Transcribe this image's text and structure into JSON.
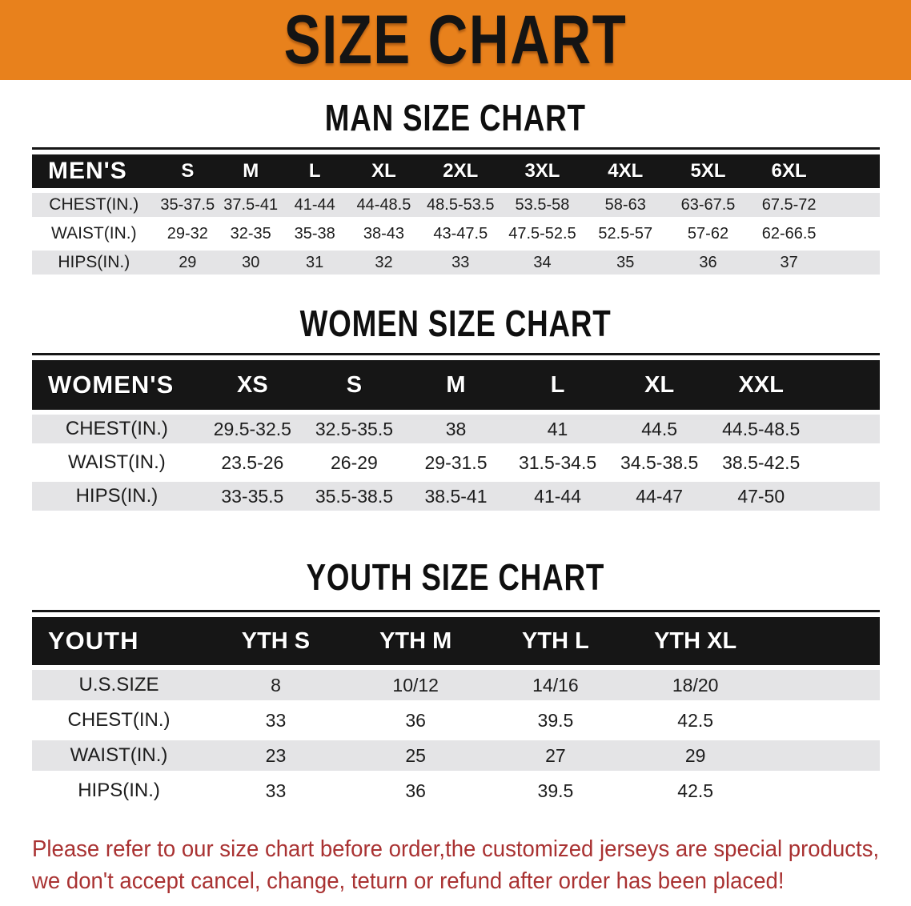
{
  "banner": {
    "title": "SIZE CHART"
  },
  "sections": [
    {
      "id": "men",
      "title": "MAN SIZE CHART",
      "group_label": "MEN'S",
      "columns": [
        "S",
        "M",
        "L",
        "XL",
        "2XL",
        "3XL",
        "4XL",
        "5XL",
        "6XL"
      ],
      "rows": [
        {
          "label": "CHEST(IN.)",
          "values": [
            "35-37.5",
            "37.5-41",
            "41-44",
            "44-48.5",
            "48.5-53.5",
            "53.5-58",
            "58-63",
            "63-67.5",
            "67.5-72"
          ]
        },
        {
          "label": "WAIST(IN.)",
          "values": [
            "29-32",
            "32-35",
            "35-38",
            "38-43",
            "43-47.5",
            "47.5-52.5",
            "52.5-57",
            "57-62",
            "62-66.5"
          ]
        },
        {
          "label": "HIPS(IN.)",
          "values": [
            "29",
            "30",
            "31",
            "32",
            "33",
            "34",
            "35",
            "36",
            "37"
          ]
        }
      ]
    },
    {
      "id": "women",
      "title": "WOMEN SIZE CHART",
      "group_label": "WOMEN'S",
      "columns": [
        "XS",
        "S",
        "M",
        "L",
        "XL",
        "XXL"
      ],
      "rows": [
        {
          "label": "CHEST(IN.)",
          "values": [
            "29.5-32.5",
            "32.5-35.5",
            "38",
            "41",
            "44.5",
            "44.5-48.5"
          ]
        },
        {
          "label": "WAIST(IN.)",
          "values": [
            "23.5-26",
            "26-29",
            "29-31.5",
            "31.5-34.5",
            "34.5-38.5",
            "38.5-42.5"
          ]
        },
        {
          "label": "HIPS(IN.)",
          "values": [
            "33-35.5",
            "35.5-38.5",
            "38.5-41",
            "41-44",
            "44-47",
            "47-50"
          ]
        }
      ]
    },
    {
      "id": "youth",
      "title": "YOUTH SIZE CHART",
      "group_label": "YOUTH",
      "columns": [
        "YTH S",
        "YTH M",
        "YTH L",
        "YTH XL"
      ],
      "rows": [
        {
          "label": "U.S.SIZE",
          "values": [
            "8",
            "10/12",
            "14/16",
            "18/20"
          ]
        },
        {
          "label": "CHEST(IN.)",
          "values": [
            "33",
            "36",
            "39.5",
            "42.5"
          ]
        },
        {
          "label": "WAIST(IN.)",
          "values": [
            "23",
            "25",
            "27",
            "29"
          ]
        },
        {
          "label": "HIPS(IN.)",
          "values": [
            "33",
            "36",
            "39.5",
            "42.5"
          ]
        }
      ]
    }
  ],
  "footer": {
    "line1": "Please refer to our size chart before order,the customized jerseys are special products,",
    "line2": "we don't accept cancel, change, teturn or refund after order has been placed!"
  },
  "colors": {
    "banner_orange": "#E8811C",
    "header_black": "#161616",
    "row_gray": "#E4E4E6",
    "note_red": "#A93232"
  }
}
